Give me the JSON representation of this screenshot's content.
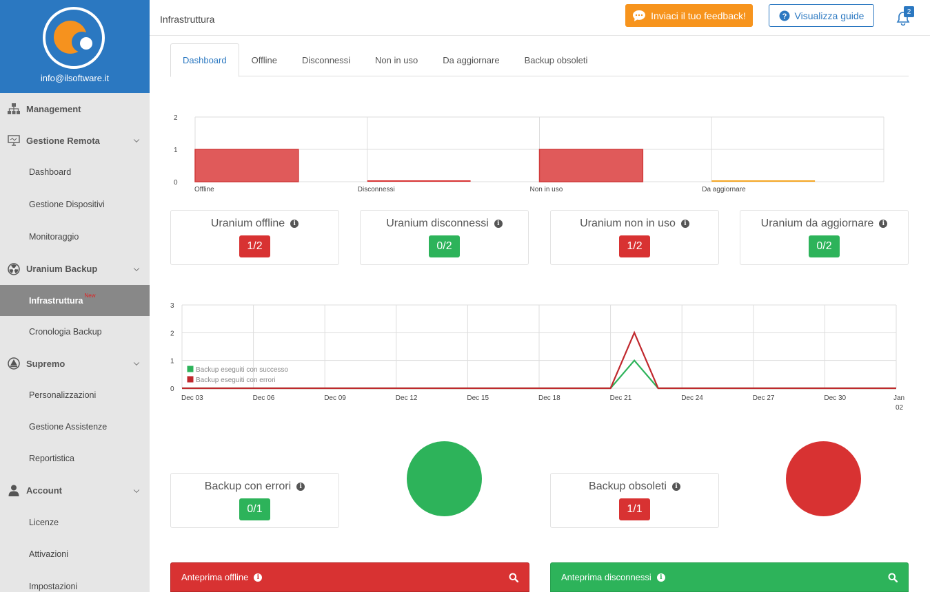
{
  "brand": {
    "email": "info@ilsoftware.it"
  },
  "sidebar": {
    "management": "Management",
    "gestione_remota": "Gestione Remota",
    "dashboard": "Dashboard",
    "gestione_dispositivi": "Gestione Dispositivi",
    "monitoraggio": "Monitoraggio",
    "uranium_backup": "Uranium Backup",
    "infrastruttura": "Infrastruttura",
    "new_badge": "New",
    "cronologia_backup": "Cronologia Backup",
    "supremo": "Supremo",
    "personalizzazioni": "Personalizzazioni",
    "gestione_assistenze": "Gestione Assistenze",
    "reportistica": "Reportistica",
    "account": "Account",
    "licenze": "Licenze",
    "attivazioni": "Attivazioni",
    "impostazioni": "Impostazioni"
  },
  "header": {
    "title": "Infrastruttura",
    "feedback_label": "Inviaci il tuo feedback!",
    "guide_label": "Visualizza guide",
    "notification_count": "2"
  },
  "tabs": [
    "Dashboard",
    "Offline",
    "Disconnessi",
    "Non in uso",
    "Da aggiornare",
    "Backup obsoleti"
  ],
  "colors": {
    "red": "#d83232",
    "green": "#2db35a",
    "orange": "#f7941d",
    "blue": "#2b78c1"
  },
  "chart_data": [
    {
      "type": "bar",
      "categories": [
        "Offline",
        "Disconnessi",
        "Non in uso",
        "Da aggiornare"
      ],
      "values": [
        1,
        0,
        1,
        0
      ],
      "colors": [
        "#e05a5a",
        "#d83232",
        "#e05a5a",
        "#f5a623"
      ],
      "ylim": [
        0,
        2
      ],
      "yticks": [
        0,
        1,
        2
      ],
      "grid": true
    },
    {
      "type": "line",
      "x_ticks": [
        "Dec 03",
        "Dec 06",
        "Dec 09",
        "Dec 12",
        "Dec 15",
        "Dec 18",
        "Dec 21",
        "Dec 24",
        "Dec 27",
        "Dec 30",
        "Jan 02"
      ],
      "x": [
        "Dec 03",
        "Dec 04",
        "Dec 05",
        "Dec 06",
        "Dec 07",
        "Dec 08",
        "Dec 09",
        "Dec 10",
        "Dec 11",
        "Dec 12",
        "Dec 13",
        "Dec 14",
        "Dec 15",
        "Dec 16",
        "Dec 17",
        "Dec 18",
        "Dec 19",
        "Dec 20",
        "Dec 21",
        "Dec 22",
        "Dec 23",
        "Dec 24",
        "Dec 25",
        "Dec 26",
        "Dec 27",
        "Dec 28",
        "Dec 29",
        "Dec 30",
        "Dec 31",
        "Jan 01",
        "Jan 02"
      ],
      "series": [
        {
          "name": "Backup eseguiti con successo",
          "color": "#2db35a",
          "values": [
            0,
            0,
            0,
            0,
            0,
            0,
            0,
            0,
            0,
            0,
            0,
            0,
            0,
            0,
            0,
            0,
            0,
            0,
            0,
            1,
            0,
            0,
            0,
            0,
            0,
            0,
            0,
            0,
            0,
            0,
            0
          ]
        },
        {
          "name": "Backup eseguiti con errori",
          "color": "#c0282d",
          "values": [
            0,
            0,
            0,
            0,
            0,
            0,
            0,
            0,
            0,
            0,
            0,
            0,
            0,
            0,
            0,
            0,
            0,
            0,
            0,
            2,
            0,
            0,
            0,
            0,
            0,
            0,
            0,
            0,
            0,
            0,
            0
          ]
        }
      ],
      "ylim": [
        0,
        3
      ],
      "yticks": [
        0,
        1,
        2,
        3
      ],
      "legend": "bottom-left",
      "grid": true
    }
  ],
  "cards": {
    "offline": {
      "title": "Uranium offline",
      "value": "1/2",
      "status": "red"
    },
    "disconnessi": {
      "title": "Uranium disconnessi",
      "value": "0/2",
      "status": "green"
    },
    "non_in_uso": {
      "title": "Uranium non in uso",
      "value": "1/2",
      "status": "red"
    },
    "da_aggiornare": {
      "title": "Uranium da aggiornare",
      "value": "0/2",
      "status": "green"
    },
    "backup_errori": {
      "title": "Backup con errori",
      "value": "0/1",
      "status": "green"
    },
    "backup_obsoleti": {
      "title": "Backup obsoleti",
      "value": "1/1",
      "status": "red"
    }
  },
  "panels": {
    "offline": "Anteprima offline",
    "disconnessi": "Anteprima disconnessi"
  }
}
